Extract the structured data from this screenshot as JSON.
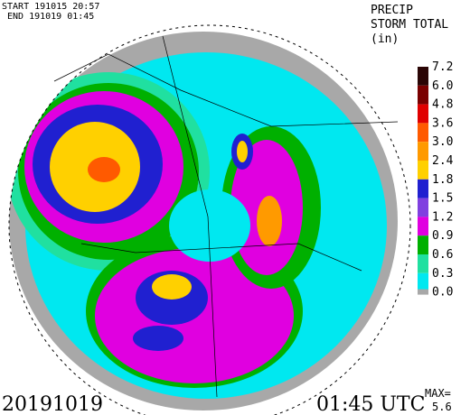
{
  "header": {
    "start": "START 191015 20:57",
    "end": "END 191019 01:45",
    "product": [
      "PRECIP",
      "STORM TOTAL",
      "(in)"
    ]
  },
  "legend": [
    {
      "label": "7.2",
      "color": "#2a0505"
    },
    {
      "label": "6.0",
      "color": "#7a0000"
    },
    {
      "label": "4.8",
      "color": "#e00000"
    },
    {
      "label": "3.6",
      "color": "#ff5a00"
    },
    {
      "label": "3.0",
      "color": "#ff9a00"
    },
    {
      "label": "2.4",
      "color": "#ffd000"
    },
    {
      "label": "1.8",
      "color": "#2020d0"
    },
    {
      "label": "1.5",
      "color": "#8040e0"
    },
    {
      "label": "1.2",
      "color": "#e000e0"
    },
    {
      "label": "0.9",
      "color": "#00b000"
    },
    {
      "label": "0.6",
      "color": "#20e0a0"
    },
    {
      "label": "0.3",
      "color": "#00e8f0"
    },
    {
      "label": "0.0",
      "color": "#a8a8a8"
    }
  ],
  "footer": {
    "date": "20191019",
    "time": "01:45 UTC",
    "max_label": "MAX=",
    "max_value": "5.6"
  }
}
